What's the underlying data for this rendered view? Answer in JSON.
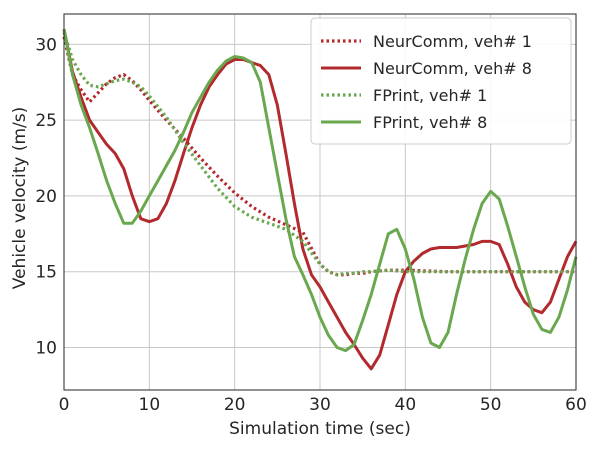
{
  "chart_data": {
    "type": "line",
    "xlabel": "Simulation time (sec)",
    "ylabel": "Vehicle velocity (m/s)",
    "xlim": [
      0,
      60
    ],
    "ylim": [
      7.2,
      32
    ],
    "xticks": [
      0,
      10,
      20,
      30,
      40,
      50,
      60
    ],
    "yticks": [
      10,
      15,
      20,
      25,
      30
    ],
    "xtick_labels": [
      "0",
      "10",
      "20",
      "30",
      "40",
      "50",
      "60"
    ],
    "ytick_labels": [
      "10",
      "15",
      "20",
      "25",
      "30"
    ],
    "grid": true,
    "legend_position": "top-right",
    "series": [
      {
        "name": "NeurComm, veh# 1",
        "color": "#b2292e",
        "style": "dotted",
        "x": [
          0,
          1,
          2,
          3,
          4,
          5,
          6,
          7,
          8,
          9,
          10,
          12,
          14,
          16,
          18,
          20,
          22,
          24,
          26,
          28,
          30,
          31,
          32,
          33,
          34,
          35,
          36,
          38,
          40,
          45,
          50,
          55,
          60
        ],
        "y": [
          30.5,
          28.0,
          27.0,
          26.2,
          26.8,
          27.4,
          27.8,
          28.0,
          27.6,
          27.0,
          26.3,
          25.0,
          23.8,
          22.5,
          21.3,
          20.2,
          19.3,
          18.6,
          18.1,
          17.6,
          15.5,
          15.0,
          14.8,
          14.8,
          14.9,
          14.9,
          15.0,
          15.1,
          15.1,
          15.0,
          15.0,
          15.0,
          15.0
        ]
      },
      {
        "name": "NeurComm, veh# 8",
        "color": "#b2292e",
        "style": "solid",
        "x": [
          0,
          1,
          2,
          3,
          4,
          5,
          6,
          7,
          8,
          9,
          10,
          11,
          12,
          13,
          14,
          15,
          16,
          17,
          18,
          19,
          20,
          21,
          22,
          23,
          24,
          25,
          26,
          27,
          28,
          29,
          30,
          31,
          32,
          33,
          34,
          35,
          36,
          37,
          38,
          39,
          40,
          41,
          42,
          43,
          44,
          45,
          46,
          47,
          48,
          49,
          50,
          51,
          52,
          53,
          54,
          55,
          56,
          57,
          58,
          59,
          60
        ],
        "y": [
          31.0,
          28.2,
          26.5,
          25.0,
          24.2,
          23.4,
          22.8,
          21.8,
          20.0,
          18.5,
          18.3,
          18.5,
          19.5,
          21.0,
          22.8,
          24.5,
          26.0,
          27.2,
          28.0,
          28.7,
          29.0,
          29.0,
          28.8,
          28.6,
          28.0,
          26.0,
          22.8,
          19.5,
          16.5,
          14.8,
          14.0,
          13.0,
          12.0,
          11.0,
          10.2,
          9.3,
          8.6,
          9.5,
          11.5,
          13.5,
          15.0,
          15.7,
          16.2,
          16.5,
          16.6,
          16.6,
          16.6,
          16.7,
          16.8,
          17.0,
          17.0,
          16.8,
          15.5,
          14.0,
          13.0,
          12.5,
          12.3,
          13.0,
          14.5,
          16.0,
          17.0
        ]
      },
      {
        "name": "FPrint, veh# 1",
        "color": "#6aa84f",
        "style": "dotted",
        "x": [
          0,
          1,
          2,
          3,
          4,
          5,
          6,
          7,
          8,
          9,
          10,
          12,
          14,
          16,
          18,
          20,
          22,
          24,
          26,
          28,
          30,
          31,
          32,
          33,
          34,
          35,
          36,
          38,
          40,
          45,
          50,
          55,
          60
        ],
        "y": [
          30.8,
          29.0,
          28.0,
          27.3,
          27.2,
          27.4,
          27.6,
          27.7,
          27.5,
          27.2,
          26.6,
          25.2,
          23.5,
          22.0,
          20.5,
          19.3,
          18.6,
          18.2,
          17.8,
          17.0,
          15.5,
          15.0,
          14.8,
          14.9,
          14.9,
          15.0,
          15.0,
          15.1,
          15.0,
          15.0,
          15.0,
          15.0,
          15.0
        ]
      },
      {
        "name": "FPrint, veh# 8",
        "color": "#6aa84f",
        "style": "solid",
        "x": [
          0,
          1,
          2,
          3,
          4,
          5,
          6,
          7,
          8,
          9,
          10,
          11,
          12,
          13,
          14,
          15,
          16,
          17,
          18,
          19,
          20,
          21,
          22,
          23,
          24,
          25,
          26,
          27,
          28,
          29,
          30,
          31,
          32,
          33,
          34,
          35,
          36,
          37,
          38,
          39,
          40,
          41,
          42,
          43,
          44,
          45,
          46,
          47,
          48,
          49,
          50,
          51,
          52,
          53,
          54,
          55,
          56,
          57,
          58,
          59,
          60
        ],
        "y": [
          31.0,
          28.0,
          26.0,
          24.5,
          22.8,
          21.0,
          19.5,
          18.2,
          18.2,
          19.0,
          20.0,
          21.0,
          22.0,
          23.0,
          24.2,
          25.5,
          26.5,
          27.5,
          28.3,
          28.9,
          29.2,
          29.1,
          28.8,
          27.5,
          24.5,
          21.5,
          18.5,
          16.0,
          14.8,
          13.5,
          12.0,
          10.8,
          10.0,
          9.8,
          10.2,
          11.8,
          13.5,
          15.5,
          17.5,
          17.8,
          16.5,
          14.5,
          12.0,
          10.3,
          10.0,
          11.0,
          13.5,
          15.8,
          17.8,
          19.5,
          20.3,
          19.8,
          18.0,
          16.0,
          14.0,
          12.2,
          11.2,
          11.0,
          12.0,
          13.8,
          16.0
        ]
      }
    ]
  }
}
